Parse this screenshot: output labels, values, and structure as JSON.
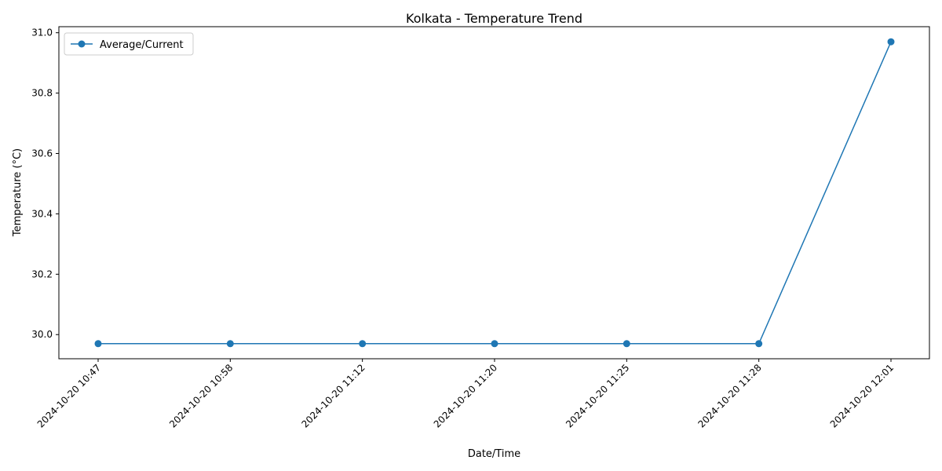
{
  "chart_data": {
    "type": "line",
    "title": "Kolkata - Temperature Trend",
    "xlabel": "Date/Time",
    "ylabel": "Temperature (°C)",
    "categories": [
      "2024-10-20 10:47",
      "2024-10-20 10:58",
      "2024-10-20 11:12",
      "2024-10-20 11:20",
      "2024-10-20 11:25",
      "2024-10-20 11:28",
      "2024-10-20 12:01"
    ],
    "series": [
      {
        "name": "Average/Current",
        "values": [
          29.97,
          29.97,
          29.97,
          29.97,
          29.97,
          29.97,
          30.97
        ],
        "color": "#1f77b4",
        "marker": "circle"
      }
    ],
    "ylim": [
      29.92,
      31.02
    ],
    "yticks": [
      30.0,
      30.2,
      30.4,
      30.6,
      30.8,
      31.0
    ],
    "ytick_labels": [
      "30.0",
      "30.2",
      "30.4",
      "30.6",
      "30.8",
      "31.0"
    ],
    "grid": false,
    "legend": "top-left"
  }
}
